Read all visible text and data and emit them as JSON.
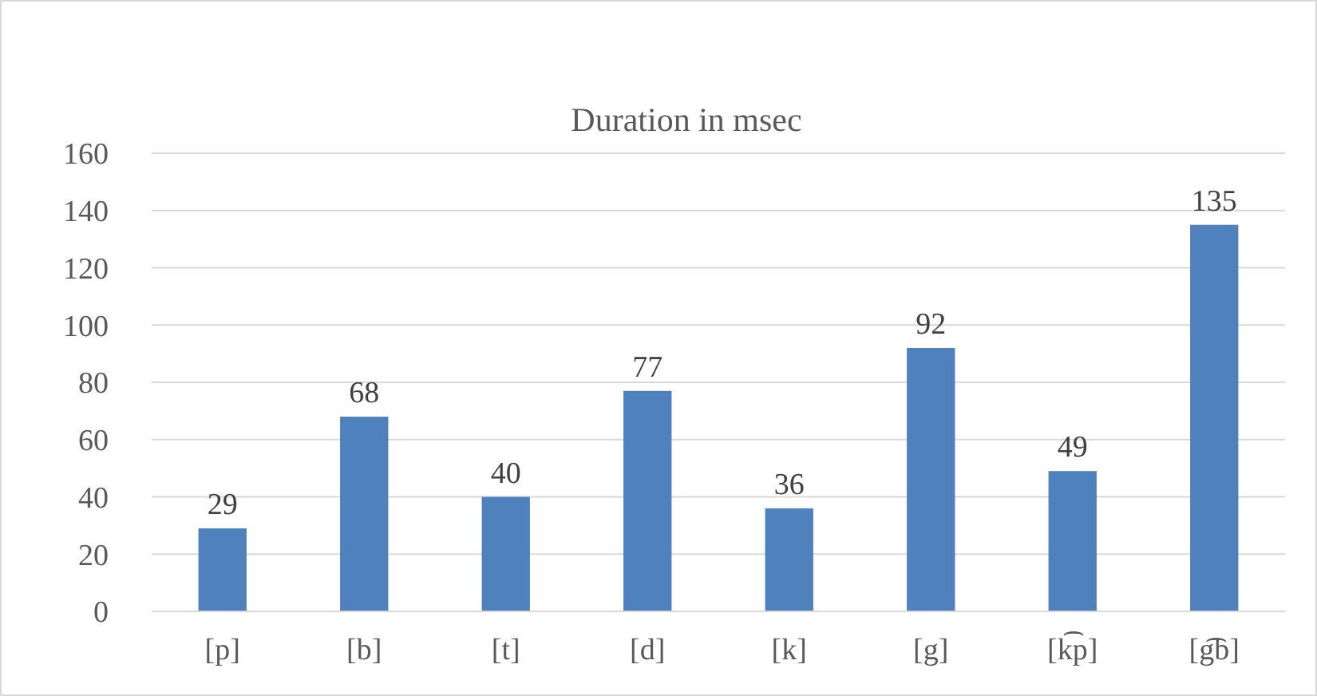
{
  "chart_data": {
    "type": "bar",
    "title": "Duration in msec",
    "categories": [
      "[p]",
      "[b]",
      "[t]",
      "[d]",
      "[k]",
      "[g]",
      "[k͡p]",
      "[g͡b]"
    ],
    "values": [
      29,
      68,
      40,
      77,
      36,
      92,
      49,
      135
    ],
    "color": "#4f81bd",
    "ylim": [
      0,
      160
    ],
    "yticks": [
      0,
      20,
      40,
      60,
      80,
      100,
      120,
      140,
      160
    ],
    "grid": "y",
    "data_labels": true
  }
}
